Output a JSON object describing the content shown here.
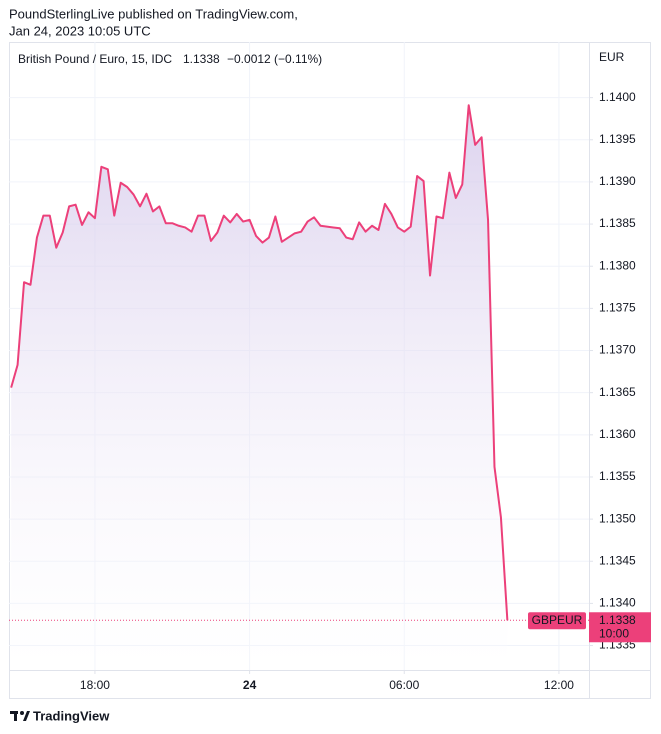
{
  "header": {
    "publisher": "PoundSterlingLive published on TradingView.com,",
    "date": "Jan 24, 2023 10:05 UTC"
  },
  "footer": {
    "brand": "TradingView"
  },
  "chart_data": {
    "type": "area",
    "title": "British Pound / Euro, 15, IDC",
    "change": "−0.0012 (−0.11%)",
    "symbol": "GBPEUR",
    "y_label": "EUR",
    "color": "#ec407a",
    "fill_color": "#d1c4e9",
    "grid": true,
    "x": [
      "14:45",
      "15:00",
      "15:15",
      "15:30",
      "15:45",
      "16:00",
      "16:15",
      "16:30",
      "16:45",
      "17:00",
      "17:15",
      "17:30",
      "17:45",
      "18:00",
      "18:15",
      "18:30",
      "18:45",
      "19:00",
      "19:15",
      "19:30",
      "19:45",
      "20:00",
      "20:15",
      "20:30",
      "20:45",
      "21:00",
      "21:15",
      "21:30",
      "21:45",
      "22:00",
      "22:15",
      "22:30",
      "22:45",
      "23:00",
      "23:15",
      "23:30",
      "23:45",
      "00:00",
      "00:15",
      "00:30",
      "00:45",
      "01:00",
      "01:15",
      "01:30",
      "01:45",
      "02:00",
      "02:15",
      "02:30",
      "02:45",
      "03:00",
      "03:15",
      "03:30",
      "03:45",
      "04:00",
      "04:15",
      "04:30",
      "04:45",
      "05:00",
      "05:15",
      "05:30",
      "05:45",
      "06:00",
      "06:15",
      "06:30",
      "06:45",
      "07:00",
      "07:15",
      "07:30",
      "07:45",
      "08:00",
      "08:15",
      "08:30",
      "08:45",
      "09:00",
      "09:15",
      "09:30",
      "09:45",
      "10:00"
    ],
    "values": [
      1.13656,
      1.13683,
      1.13781,
      1.13778,
      1.13834,
      1.1386,
      1.1386,
      1.13822,
      1.1384,
      1.13871,
      1.13873,
      1.13849,
      1.13864,
      1.13857,
      1.13918,
      1.13915,
      1.1386,
      1.13899,
      1.13894,
      1.13885,
      1.13871,
      1.13886,
      1.13865,
      1.13871,
      1.13851,
      1.13851,
      1.13848,
      1.13846,
      1.13841,
      1.1386,
      1.1386,
      1.1383,
      1.1384,
      1.1386,
      1.13852,
      1.13862,
      1.13853,
      1.13855,
      1.13836,
      1.13828,
      1.13834,
      1.13859,
      1.13829,
      1.13834,
      1.13839,
      1.13841,
      1.13853,
      1.13858,
      1.13848,
      1.13847,
      1.13846,
      1.13845,
      1.13834,
      1.13832,
      1.13852,
      1.13841,
      1.13848,
      1.13843,
      1.13874,
      1.13862,
      1.13846,
      1.13841,
      1.13847,
      1.13907,
      1.13901,
      1.13789,
      1.13859,
      1.13857,
      1.13911,
      1.13881,
      1.13897,
      1.13991,
      1.13944,
      1.13953,
      1.13855,
      1.13562,
      1.13502,
      1.1338
    ],
    "xlim": [
      "14:40",
      "13:10"
    ],
    "xticks": [
      {
        "value": "18:00",
        "label": "18:00"
      },
      {
        "value": "00:00",
        "label": "24"
      },
      {
        "value": "06:00",
        "label": "06:00"
      },
      {
        "value": "12:00",
        "label": "12:00"
      }
    ],
    "ylim": [
      1.13321,
      1.14066
    ],
    "yticks": [
      1.1335,
      {
        "value": 1.134,
        "label": "1.1340"
      },
      1.1345,
      {
        "value": 1.135,
        "label": "1.1350"
      },
      1.1355,
      {
        "value": 1.136,
        "label": "1.1360"
      },
      1.1365,
      {
        "value": 1.137,
        "label": "1.1370"
      },
      1.1375,
      {
        "value": 1.138,
        "label": "1.1380"
      },
      1.1385,
      {
        "value": 1.139,
        "label": "1.1390"
      },
      1.1395,
      {
        "value": 1.14,
        "label": "1.1400"
      }
    ]
  }
}
